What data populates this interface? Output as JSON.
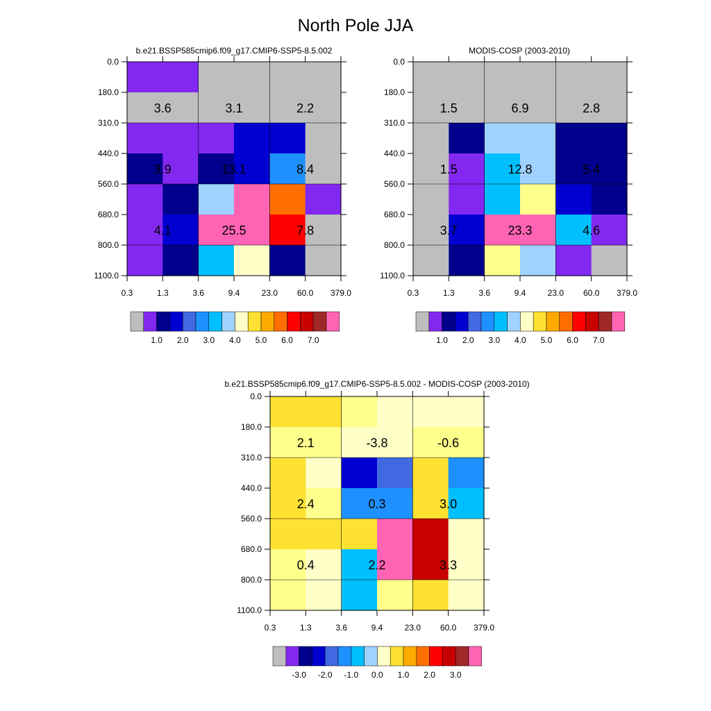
{
  "page_title": "North Pole JJA",
  "chart_data": [
    {
      "type": "heatmap",
      "title": "b.e21.BSSP585cmip6.f09_g17.CMIP6-SSP5-8.5.002",
      "x_ticks": [
        "0.3",
        "1.3",
        "3.6",
        "9.4",
        "23.0",
        "60.0",
        "379.0"
      ],
      "y_ticks": [
        "0.0",
        "180.0",
        "310.0",
        "440.0",
        "560.0",
        "680.0",
        "800.0",
        "1100.0"
      ],
      "cells": [
        [
          1,
          1,
          0,
          0,
          0,
          0
        ],
        [
          0,
          0,
          0,
          0,
          0,
          0
        ],
        [
          1,
          1,
          1,
          3,
          3,
          0
        ],
        [
          2,
          1,
          2,
          3,
          5,
          0
        ],
        [
          1,
          2,
          7,
          16,
          12,
          1
        ],
        [
          1,
          3,
          16,
          18,
          13,
          0
        ],
        [
          1,
          2,
          6,
          8,
          2,
          0
        ]
      ],
      "annotations": [
        [
          "3.6",
          "3.1",
          "2.2"
        ],
        [
          "3.9",
          "13.1",
          "8.4"
        ],
        [
          "4.1",
          "25.5",
          "7.8"
        ]
      ],
      "colorbar_labels": [
        "1.0",
        "2.0",
        "3.0",
        "4.0",
        "5.0",
        "6.0",
        "7.0"
      ]
    },
    {
      "type": "heatmap",
      "title": "MODIS-COSP (2003-2010)",
      "x_ticks": [
        "0.3",
        "1.3",
        "3.6",
        "9.4",
        "23.0",
        "60.0",
        "379.0"
      ],
      "y_ticks": [
        "0.0",
        "180.0",
        "310.0",
        "440.0",
        "560.0",
        "680.0",
        "800.0",
        "1100.0"
      ],
      "cells": [
        [
          0,
          0,
          0,
          0,
          0,
          0
        ],
        [
          0,
          0,
          0,
          0,
          0,
          0
        ],
        [
          0,
          2,
          7,
          7,
          2,
          2
        ],
        [
          0,
          1,
          6,
          7,
          2,
          2
        ],
        [
          0,
          1,
          6,
          9,
          3,
          2
        ],
        [
          0,
          3,
          18,
          18,
          6,
          1
        ],
        [
          0,
          2,
          9,
          7,
          1,
          0
        ]
      ],
      "annotations": [
        [
          "1.5",
          "6.9",
          "2.8"
        ],
        [
          "1.5",
          "12.8",
          "5.4"
        ],
        [
          "3.7",
          "23.3",
          "4.6"
        ]
      ],
      "colorbar_labels": [
        "1.0",
        "2.0",
        "3.0",
        "4.0",
        "5.0",
        "6.0",
        "7.0"
      ]
    },
    {
      "type": "heatmap",
      "title": "b.e21.BSSP585cmip6.f09_g17.CMIP6-SSP5-8.5.002 - MODIS-COSP (2003-2010)",
      "x_ticks": [
        "0.3",
        "1.3",
        "3.6",
        "9.4",
        "23.0",
        "60.0",
        "379.0"
      ],
      "y_ticks": [
        "0.0",
        "180.0",
        "310.0",
        "440.0",
        "560.0",
        "680.0",
        "800.0",
        "1100.0"
      ],
      "cells": [
        [
          10,
          10,
          9,
          8,
          8,
          8
        ],
        [
          9,
          9,
          8,
          8,
          9,
          9
        ],
        [
          10,
          8,
          3,
          4,
          10,
          5
        ],
        [
          10,
          9,
          5,
          5,
          10,
          6
        ],
        [
          10,
          10,
          10,
          16,
          17,
          8
        ],
        [
          9,
          8,
          6,
          18,
          17,
          8
        ],
        [
          9,
          8,
          6,
          9,
          10,
          8
        ]
      ],
      "annotations": [
        [
          "2.1",
          "-3.8",
          "-0.6"
        ],
        [
          "2.4",
          "0.3",
          "3.0"
        ],
        [
          "0.4",
          "2.2",
          "3.3"
        ]
      ],
      "colorbar_labels": [
        "-3.0",
        "-2.0",
        "-1.0",
        "0.0",
        "1.0",
        "2.0",
        "3.0"
      ]
    }
  ],
  "palette": [
    "#bebebe",
    "#8228f0",
    "#00008c",
    "#0000d0",
    "#4169e1",
    "#1e90ff",
    "#00bfff",
    "#a0d2ff",
    "#ffffc8",
    "#ffff8c",
    "#ffe132",
    "#ffaa00",
    "#ff6e00",
    "#ff0000",
    "#c80000",
    "#a02828",
    "#ff69b4",
    "#a52a2a",
    "#ff64b4"
  ]
}
